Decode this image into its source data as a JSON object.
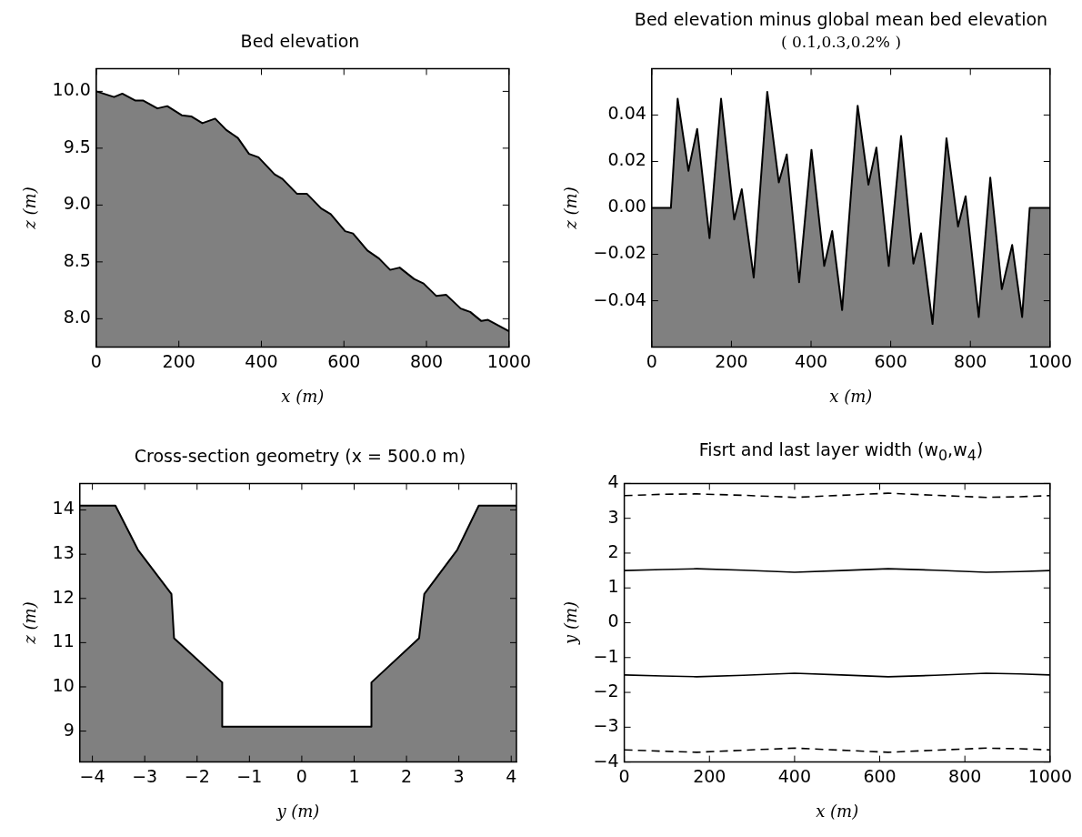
{
  "chart_data": [
    {
      "type": "area",
      "title": "Bed elevation",
      "xlabel": "x (m)",
      "ylabel": "z (m)",
      "xlim": [
        0,
        1000
      ],
      "ylim": [
        7.75,
        10.2
      ],
      "xticks": [
        0,
        200,
        400,
        600,
        800,
        1000
      ],
      "yticks": [
        {
          "value": 8,
          "label": "8.0"
        },
        {
          "value": 8.5,
          "label": "8.5"
        },
        {
          "value": 9,
          "label": "9.0"
        },
        {
          "value": 9.5,
          "label": "9.5"
        },
        {
          "value": 10,
          "label": "10.0"
        }
      ],
      "grid": false,
      "legend": false,
      "marker": "none",
      "x": [
        0,
        43,
        63,
        94,
        113,
        148,
        172,
        207,
        230,
        257,
        288,
        315,
        343,
        370,
        393,
        432,
        451,
        486,
        510,
        545,
        568,
        603,
        622,
        657,
        685,
        712,
        735,
        770,
        793,
        824,
        848,
        883,
        906,
        933,
        949,
        1000
      ],
      "series": [
        {
          "color": "#808080",
          "values": [
            10.0,
            9.95,
            9.98,
            9.92,
            9.92,
            9.85,
            9.87,
            9.79,
            9.78,
            9.72,
            9.76,
            9.66,
            9.59,
            9.45,
            9.42,
            9.27,
            9.23,
            9.1,
            9.1,
            8.97,
            8.92,
            8.77,
            8.75,
            8.6,
            8.53,
            8.43,
            8.45,
            8.35,
            8.31,
            8.2,
            8.21,
            8.09,
            8.06,
            7.98,
            7.99,
            7.89
          ]
        }
      ]
    },
    {
      "type": "area",
      "title": "Bed elevation minus global mean bed elevation",
      "subtitle": "( 0.1,0.3,0.2% )",
      "xlabel": "x (m)",
      "ylabel": "z (m)",
      "xlim": [
        0,
        1000
      ],
      "ylim": [
        -0.06,
        0.06
      ],
      "xticks": [
        0,
        200,
        400,
        600,
        800,
        1000
      ],
      "yticks": [
        {
          "value": -0.04,
          "label": "−0.04"
        },
        {
          "value": -0.02,
          "label": "−0.02"
        },
        {
          "value": 0,
          "label": "0.00"
        },
        {
          "value": 0.02,
          "label": "0.02"
        },
        {
          "value": 0.04,
          "label": "0.04"
        }
      ],
      "grid": false,
      "legend": false,
      "marker": "none",
      "x": [
        0,
        48,
        65,
        92,
        114,
        145,
        174,
        207,
        226,
        256,
        290,
        319,
        339,
        370,
        401,
        433,
        453,
        478,
        517,
        544,
        564,
        595,
        626,
        657,
        676,
        705,
        740,
        769,
        788,
        821,
        850,
        879,
        905,
        930,
        949,
        1000
      ],
      "series": [
        {
          "color": "#808080",
          "values": [
            0,
            0,
            0.047,
            0.016,
            0.034,
            -0.013,
            0.047,
            -0.005,
            0.008,
            -0.03,
            0.05,
            0.011,
            0.023,
            -0.032,
            0.025,
            -0.025,
            -0.01,
            -0.044,
            0.044,
            0.01,
            0.026,
            -0.025,
            0.031,
            -0.024,
            -0.011,
            -0.05,
            0.03,
            -0.008,
            0.005,
            -0.047,
            0.013,
            -0.035,
            -0.016,
            -0.047,
            0,
            0
          ]
        }
      ]
    },
    {
      "type": "area",
      "title": "Cross-section geometry  (x = 500.0 m)",
      "xlabel": "y (m)",
      "ylabel": "z (m)",
      "xlim": [
        -4.24,
        4.1
      ],
      "ylim": [
        8.3,
        14.6
      ],
      "xticks": [
        {
          "value": -4,
          "label": "−4"
        },
        {
          "value": -3,
          "label": "−3"
        },
        {
          "value": -2,
          "label": "−2"
        },
        {
          "value": -1,
          "label": "−1"
        },
        0,
        1,
        2,
        3,
        4
      ],
      "yticks": [
        9,
        10,
        11,
        12,
        13,
        14
      ],
      "grid": false,
      "legend": false,
      "marker": "none",
      "x": [
        -4.24,
        -3.56,
        -3.13,
        -2.49,
        -2.44,
        -1.52,
        -1.52,
        1.33,
        1.33,
        2.24,
        2.34,
        2.97,
        3.38,
        4.1
      ],
      "series": [
        {
          "color": "#808080",
          "values": [
            14.1,
            14.1,
            13.1,
            12.1,
            11.1,
            10.1,
            9.1,
            9.1,
            10.1,
            11.1,
            12.1,
            13.1,
            14.1,
            14.1
          ]
        }
      ]
    },
    {
      "type": "line",
      "title": "Fisrt and last layer width (w$_{0}$,w$_{4}$)",
      "xlabel": "x (m)",
      "ylabel": "y (m)",
      "xlim": [
        0,
        1000
      ],
      "ylim": [
        -4,
        4
      ],
      "xticks": [
        0,
        200,
        400,
        600,
        800,
        1000
      ],
      "yticks": [
        {
          "value": -4,
          "label": "−4"
        },
        {
          "value": -3,
          "label": "−3"
        },
        {
          "value": -2,
          "label": "−2"
        },
        {
          "value": -1,
          "label": "−1"
        },
        0,
        1,
        2,
        3,
        4
      ],
      "grid": false,
      "legend": false,
      "marker": "none",
      "x": [
        0,
        90,
        170,
        280,
        400,
        510,
        620,
        730,
        850,
        930,
        1000
      ],
      "series": [
        {
          "color": "#000000",
          "line_style": "dashed",
          "values": [
            3.65,
            3.69,
            3.7,
            3.66,
            3.6,
            3.66,
            3.72,
            3.66,
            3.6,
            3.62,
            3.65
          ]
        },
        {
          "color": "#000000",
          "line_style": "solid",
          "values": [
            1.5,
            1.53,
            1.55,
            1.51,
            1.45,
            1.5,
            1.55,
            1.51,
            1.45,
            1.47,
            1.5
          ]
        },
        {
          "color": "#000000",
          "line_style": "solid",
          "values": [
            -1.5,
            -1.53,
            -1.55,
            -1.51,
            -1.45,
            -1.5,
            -1.55,
            -1.51,
            -1.45,
            -1.47,
            -1.5
          ]
        },
        {
          "color": "#000000",
          "line_style": "dashed",
          "values": [
            -3.65,
            -3.69,
            -3.72,
            -3.66,
            -3.6,
            -3.66,
            -3.72,
            -3.66,
            -3.6,
            -3.62,
            -3.65
          ]
        }
      ]
    }
  ]
}
